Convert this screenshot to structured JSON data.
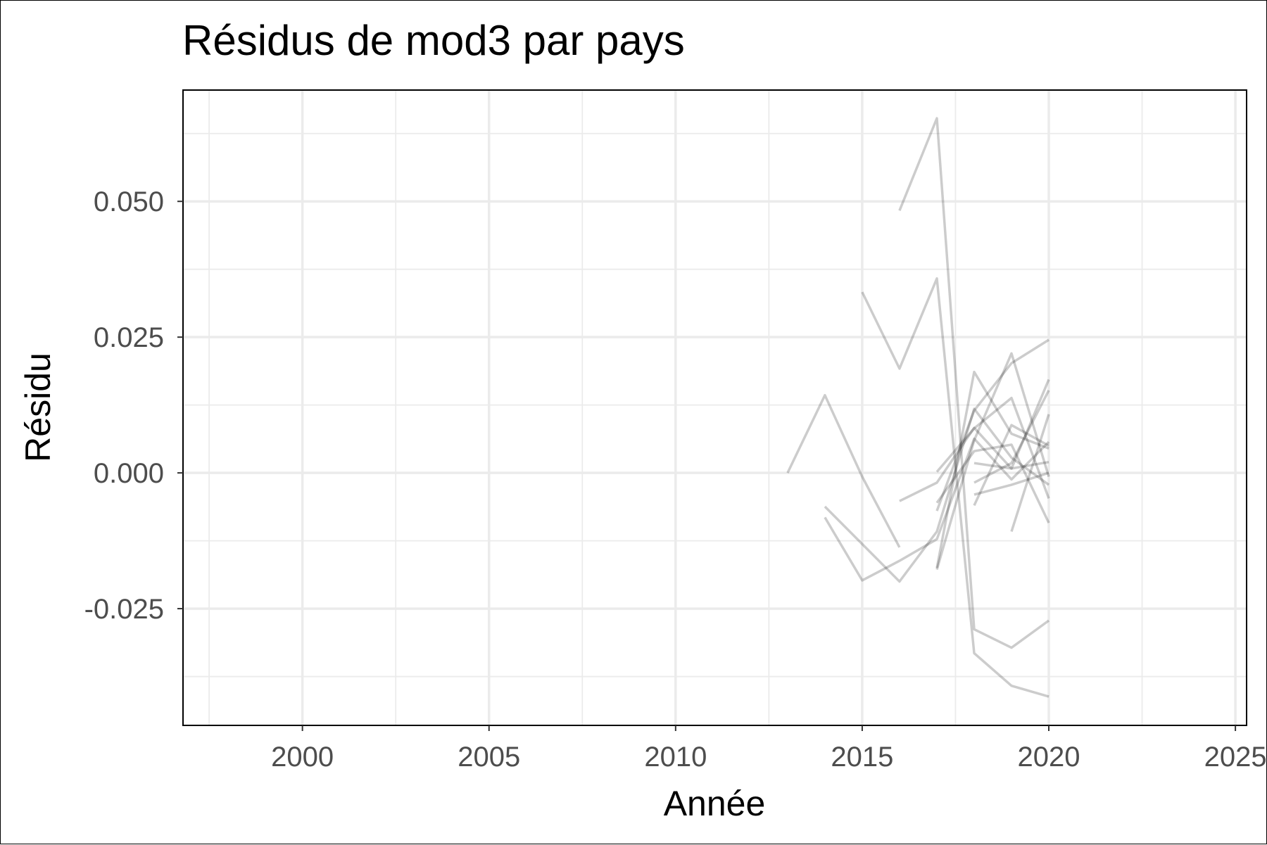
{
  "chart_data": {
    "type": "line",
    "title": "Résidus de mod3 par pays",
    "xlabel": "Année",
    "ylabel": "Résidu",
    "xlim": [
      1996.8,
      2025.3
    ],
    "ylim": [
      -0.0465,
      0.0705
    ],
    "x_ticks": [
      2000,
      2005,
      2010,
      2015,
      2020,
      2025
    ],
    "x_tick_labels": [
      "2000",
      "2005",
      "2010",
      "2015",
      "2020",
      "2025"
    ],
    "y_ticks": [
      -0.025,
      0,
      0.025,
      0.05
    ],
    "y_tick_labels": [
      "-0.025",
      "0.000",
      "0.025",
      "0.050"
    ],
    "grid": true,
    "legend": "none",
    "line_color": "#000000",
    "line_opacity": 0.2,
    "series": [
      {
        "x": [
          2013,
          2014,
          2015,
          2016
        ],
        "y": [
          0.0,
          0.0143,
          -0.0007,
          -0.0137
        ]
      },
      {
        "x": [
          2014,
          2015,
          2016,
          2017,
          2018,
          2019,
          2020
        ],
        "y": [
          -0.0082,
          -0.0198,
          -0.0162,
          -0.0122,
          0.0063,
          -0.0012,
          0.0057
        ]
      },
      {
        "x": [
          2014,
          2016,
          2017,
          2018,
          2019,
          2020
        ],
        "y": [
          -0.0062,
          -0.02,
          -0.0108,
          0.0118,
          0.0028,
          -0.0022
        ]
      },
      {
        "x": [
          2015,
          2016,
          2017,
          2018,
          2019,
          2020
        ],
        "y": [
          0.0333,
          0.0192,
          0.0358,
          -0.0332,
          -0.0392,
          -0.0412
        ]
      },
      {
        "x": [
          2016,
          2017,
          2018,
          2019,
          2020
        ],
        "y": [
          0.0483,
          0.0653,
          -0.0288,
          -0.0322,
          -0.0272
        ]
      },
      {
        "x": [
          2016,
          2017,
          2018,
          2019,
          2020
        ],
        "y": [
          -0.0052,
          -0.0018,
          0.0083,
          0.0008,
          0.002
        ]
      },
      {
        "x": [
          2017,
          2018,
          2019,
          2020
        ],
        "y": [
          -0.0175,
          0.0186,
          0.0072,
          0.0045
        ]
      },
      {
        "x": [
          2017,
          2018,
          2019,
          2020
        ],
        "y": [
          -0.007,
          0.0115,
          0.0202,
          0.0245
        ]
      },
      {
        "x": [
          2017,
          2018,
          2019,
          2020
        ],
        "y": [
          -0.0178,
          0.006,
          0.022,
          -0.0007
        ]
      },
      {
        "x": [
          2017,
          2018,
          2019,
          2020
        ],
        "y": [
          0.0002,
          0.0082,
          0.0138,
          -0.0047
        ]
      },
      {
        "x": [
          2017,
          2018,
          2019,
          2020
        ],
        "y": [
          -0.0055,
          0.004,
          0.0052,
          -0.0092
        ]
      },
      {
        "x": [
          2018,
          2019,
          2020
        ],
        "y": [
          0.0018,
          0.0008,
          0.0172
        ]
      },
      {
        "x": [
          2018,
          2019,
          2020
        ],
        "y": [
          -0.0018,
          0.0018,
          0.0152
        ]
      },
      {
        "x": [
          2018,
          2019,
          2020
        ],
        "y": [
          -0.004,
          -0.0022,
          0.0
        ]
      },
      {
        "x": [
          2018,
          2019,
          2020
        ],
        "y": [
          -0.006,
          0.0088,
          0.005
        ]
      },
      {
        "x": [
          2019,
          2020
        ],
        "y": [
          -0.0108,
          0.0108
        ]
      }
    ]
  }
}
